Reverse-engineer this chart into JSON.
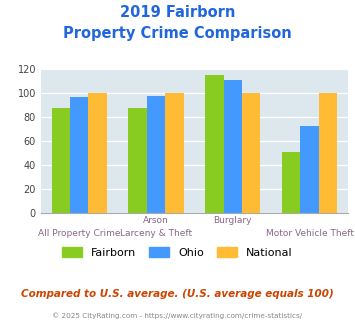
{
  "title_line1": "2019 Fairborn",
  "title_line2": "Property Crime Comparison",
  "cat_labels_top": [
    "",
    "Arson",
    "Burglary",
    ""
  ],
  "cat_labels_bottom": [
    "All Property Crime",
    "Larceny & Theft",
    "",
    "Motor Vehicle Theft"
  ],
  "fairborn": [
    88,
    88,
    115,
    51
  ],
  "ohio": [
    97,
    98,
    111,
    73
  ],
  "national": [
    100,
    100,
    100,
    100
  ],
  "color_fairborn": "#88cc22",
  "color_ohio": "#4499ff",
  "color_national": "#ffbb33",
  "ylim": [
    0,
    120
  ],
  "yticks": [
    0,
    20,
    40,
    60,
    80,
    100,
    120
  ],
  "bg_color": "#dce8ee",
  "title_color": "#2266dd",
  "xlabel_top_color": "#886688",
  "xlabel_bot_color": "#886688",
  "footer_note": "Compared to U.S. average. (U.S. average equals 100)",
  "footer_copyright": "© 2025 CityRating.com - https://www.cityrating.com/crime-statistics/",
  "legend_labels": [
    "Fairborn",
    "Ohio",
    "National"
  ]
}
